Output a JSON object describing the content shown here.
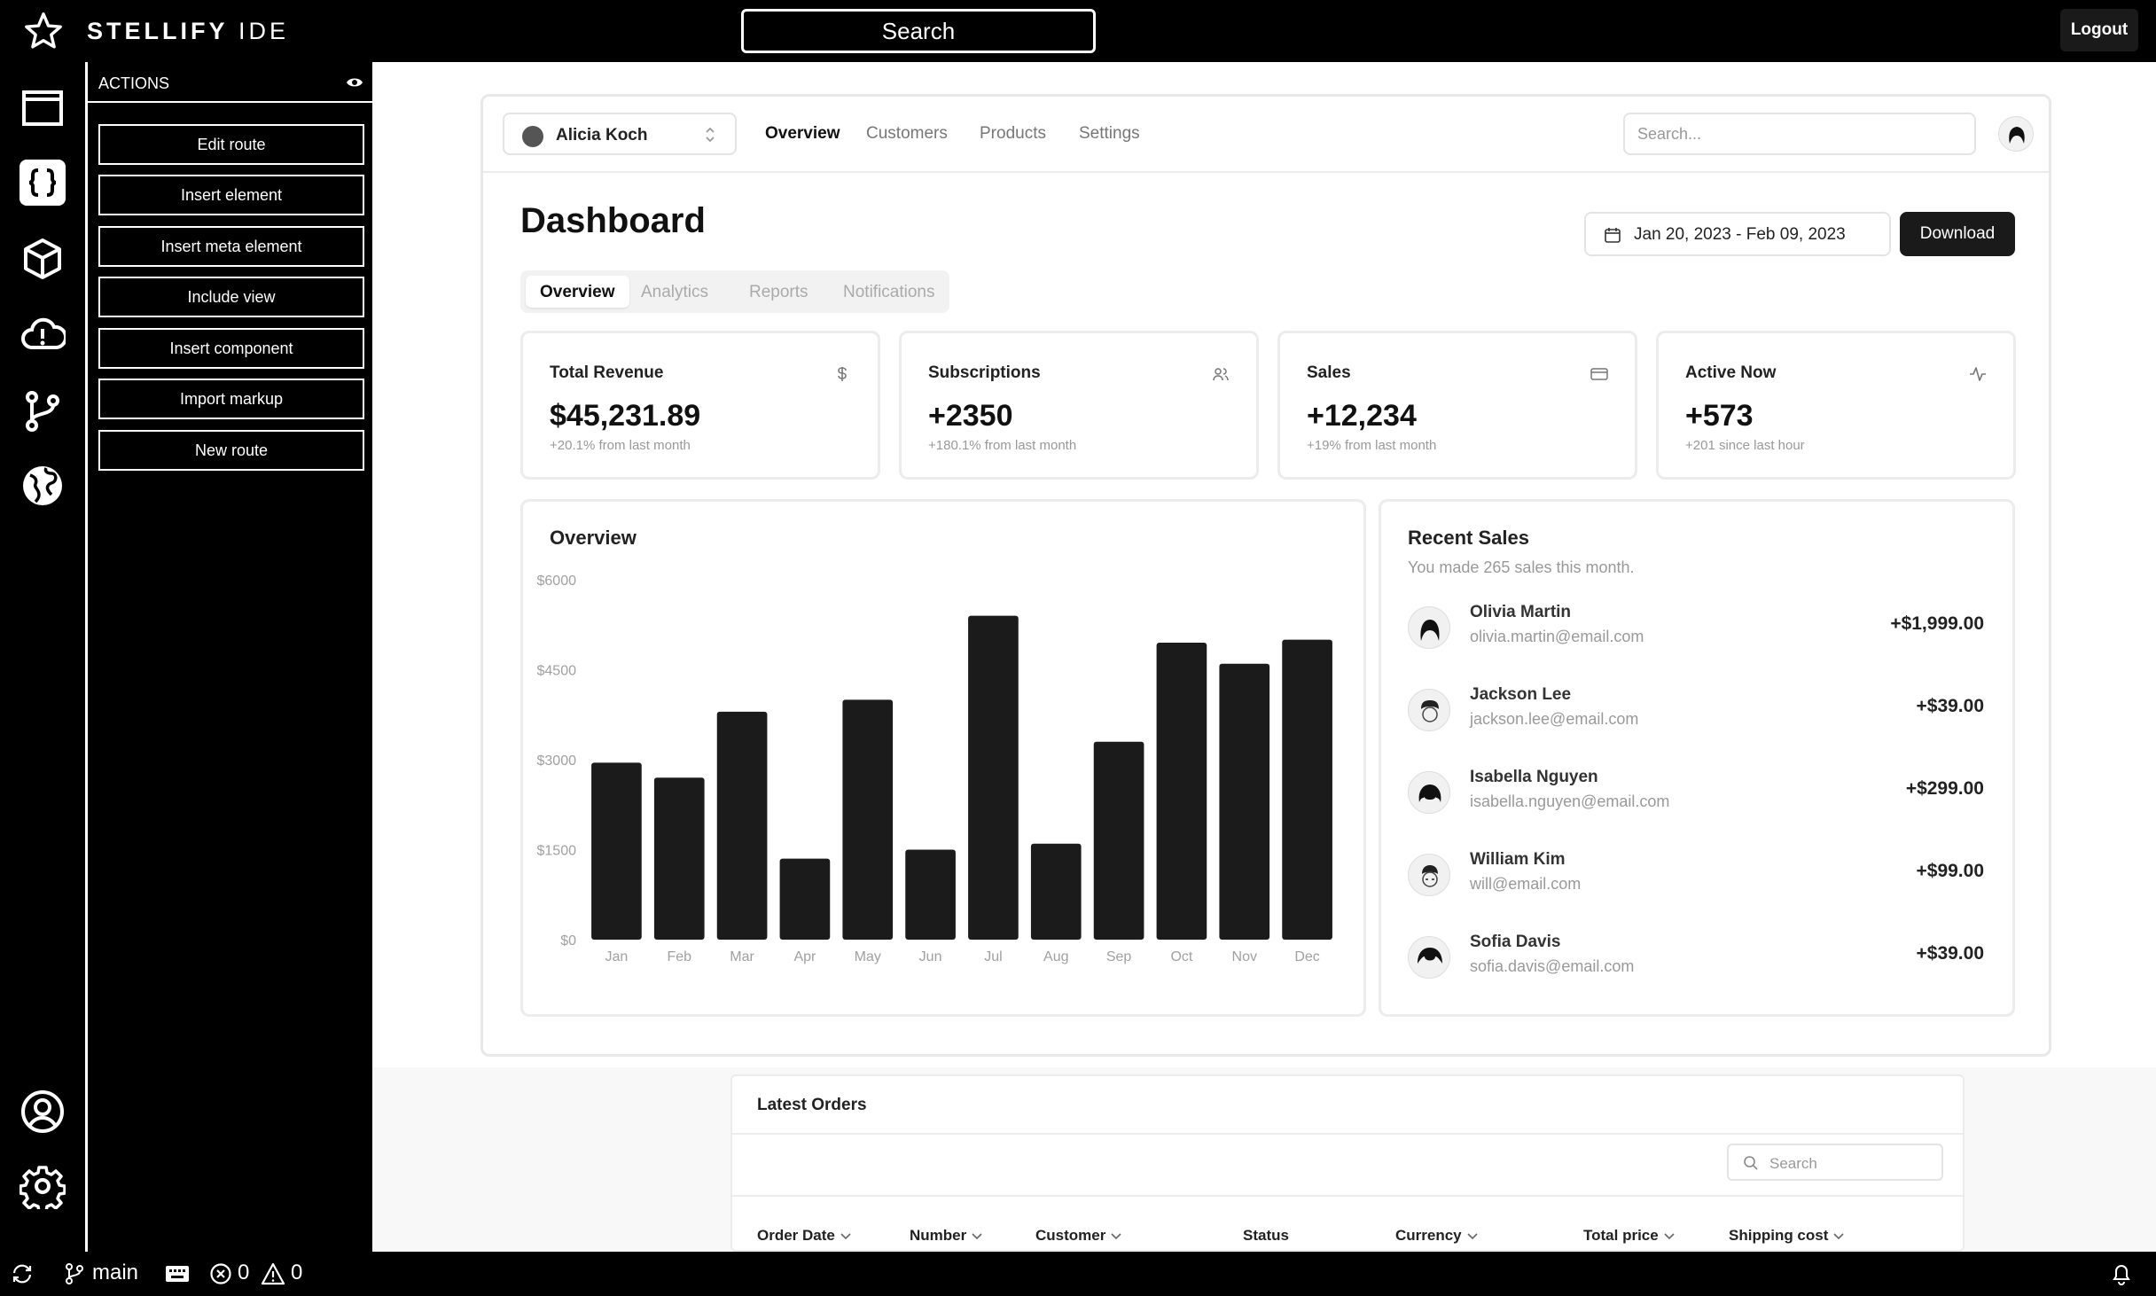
{
  "app": {
    "brand_bold": "STELLIFY",
    "brand_light": "IDE",
    "search_label": "Search",
    "logout_label": "Logout"
  },
  "rail": {
    "items": [
      "window-icon",
      "code-braces-icon",
      "cube-icon",
      "cloud-alert-icon",
      "git-branch-icon",
      "globe-icon",
      "user-circle-icon",
      "settings-gear-icon"
    ],
    "active": "code-braces-icon"
  },
  "actions": {
    "title": "ACTIONS",
    "buttons": [
      "Edit route",
      "Insert element",
      "Insert meta element",
      "Include view",
      "Insert component",
      "Import markup",
      "New route"
    ]
  },
  "dashboard": {
    "team_name": "Alicia Koch",
    "nav": [
      "Overview",
      "Customers",
      "Products",
      "Settings"
    ],
    "search_placeholder": "Search...",
    "title": "Dashboard",
    "date_range": "Jan 20, 2023 - Feb 09, 2023",
    "download_label": "Download",
    "tabs": [
      "Overview",
      "Analytics",
      "Reports",
      "Notifications"
    ],
    "kpis": [
      {
        "label": "Total Revenue",
        "value": "$45,231.89",
        "sub": "+20.1% from last month",
        "icon": "dollar-icon"
      },
      {
        "label": "Subscriptions",
        "value": "+2350",
        "sub": "+180.1% from last month",
        "icon": "users-icon"
      },
      {
        "label": "Sales",
        "value": "+12,234",
        "sub": "+19% from last month",
        "icon": "credit-card-icon"
      },
      {
        "label": "Active Now",
        "value": "+573",
        "sub": "+201 since last hour",
        "icon": "activity-icon"
      }
    ],
    "overview_title": "Overview",
    "recent_sales": {
      "title": "Recent Sales",
      "subtitle": "You made 265 sales this month.",
      "items": [
        {
          "name": "Olivia Martin",
          "email": "olivia.martin@email.com",
          "amount": "+$1,999.00"
        },
        {
          "name": "Jackson Lee",
          "email": "jackson.lee@email.com",
          "amount": "+$39.00"
        },
        {
          "name": "Isabella Nguyen",
          "email": "isabella.nguyen@email.com",
          "amount": "+$299.00"
        },
        {
          "name": "William Kim",
          "email": "will@email.com",
          "amount": "+$99.00"
        },
        {
          "name": "Sofia Davis",
          "email": "sofia.davis@email.com",
          "amount": "+$39.00"
        }
      ]
    }
  },
  "chart_data": {
    "type": "bar",
    "categories": [
      "Jan",
      "Feb",
      "Mar",
      "Apr",
      "May",
      "Jun",
      "Jul",
      "Aug",
      "Sep",
      "Oct",
      "Nov",
      "Dec"
    ],
    "values": [
      2950,
      2700,
      3800,
      1350,
      4000,
      1500,
      5400,
      1600,
      3300,
      4950,
      4600,
      5000
    ],
    "yticks": [
      "$6000",
      "$4500",
      "$3000",
      "$1500",
      "$0"
    ],
    "ylim": [
      0,
      6000
    ],
    "bar_color": "#1b1b1b"
  },
  "orders": {
    "title": "Latest Orders",
    "search_placeholder": "Search",
    "columns": [
      "Order Date",
      "Number",
      "Customer",
      "Status",
      "Currency",
      "Total price",
      "Shipping cost"
    ]
  },
  "statusbar": {
    "branch": "main",
    "errors": "0",
    "warnings": "0"
  }
}
